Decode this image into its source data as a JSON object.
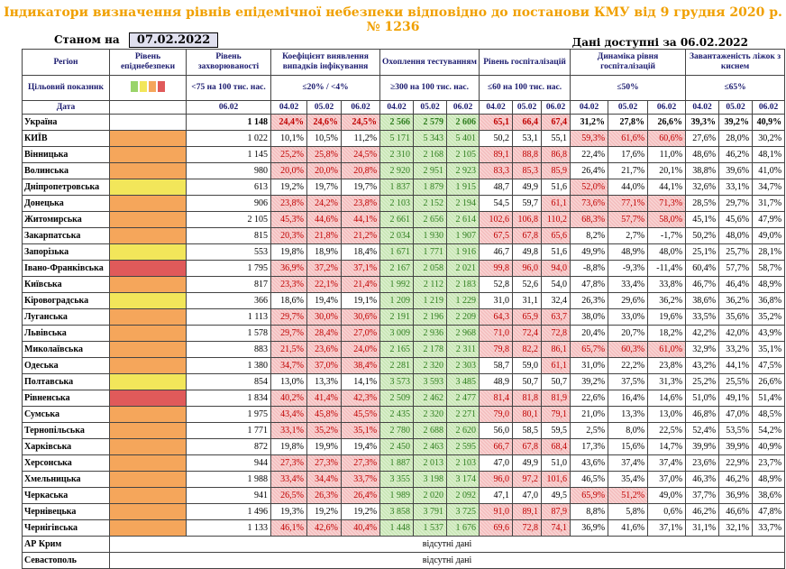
{
  "title": "Індикатори визначення рівнів епідемічної небезпеки відповідно до постанови КМУ від 9 грудня 2020 р. № 1236",
  "as_of_label": "Станом на",
  "as_of_date": "07.02.2022",
  "data_available": "Дані доступні за  06.02.2022",
  "header": {
    "region": "Регіон",
    "target": "Цільовий показник",
    "date": "Дата",
    "level": "Рівень епіднебезпеки",
    "incidence": "Рівень захворюваності",
    "incidence_target": "<75 на 100 тис. нас.",
    "positivity": "Коефіцієнт виявлення випадків інфікування",
    "positivity_target": "≤20% / <4%",
    "testing": "Охоплення тестуванням",
    "testing_target": "≥300 на 100 тис. нас.",
    "hosp": "Рівень госпіталізацій",
    "hosp_target": "≤60 на 100 тис. нас.",
    "hosp_dyn": "Динаміка рівня госпіталізацій",
    "hosp_dyn_target": "≤50%",
    "oxygen": "Завантаженість ліжок з киснем",
    "oxygen_target": "≤65%",
    "d1": "04.02",
    "d2": "05.02",
    "d3": "06.02"
  },
  "legend_colors": [
    "#9ad46a",
    "#f2e65a",
    "#f5a65b",
    "#e05a5a"
  ],
  "level_colors": {
    "orange": "#f5a65b",
    "yellow": "#f2e65a",
    "red": "#e05a5a"
  },
  "absent_text": "відсутні дані",
  "rows": [
    {
      "region": "Україна",
      "level": "",
      "inc": "1 148",
      "pos": [
        "24,4%",
        "24,6%",
        "24,5%"
      ],
      "tst": [
        "2 566",
        "2 579",
        "2 606"
      ],
      "hsp": [
        "65,1",
        "66,4",
        "67,4"
      ],
      "dyn": [
        "31,2%",
        "27,8%",
        "26,6%"
      ],
      "oxy": [
        "39,3%",
        "39,2%",
        "40,9%"
      ],
      "pc": [
        "r",
        "r",
        "r"
      ],
      "tc": [
        "g",
        "g",
        "g"
      ],
      "hc": [
        "r",
        "r",
        "r"
      ],
      "dc": [
        "",
        "",
        ""
      ]
    },
    {
      "region": "КИЇВ",
      "level": "orange",
      "inc": "1 022",
      "pos": [
        "10,1%",
        "10,5%",
        "11,2%"
      ],
      "tst": [
        "5 171",
        "5 343",
        "5 401"
      ],
      "hsp": [
        "50,2",
        "53,1",
        "55,1"
      ],
      "dyn": [
        "59,3%",
        "61,6%",
        "60,6%"
      ],
      "oxy": [
        "27,6%",
        "28,0%",
        "30,2%"
      ],
      "pc": [
        "",
        "",
        ""
      ],
      "tc": [
        "g",
        "g",
        "g"
      ],
      "hc": [
        "",
        "",
        ""
      ],
      "dc": [
        "r",
        "r",
        "r"
      ]
    },
    {
      "region": "Вінницька",
      "level": "orange",
      "inc": "1 145",
      "pos": [
        "25,2%",
        "25,8%",
        "24,5%"
      ],
      "tst": [
        "2 310",
        "2 168",
        "2 105"
      ],
      "hsp": [
        "89,1",
        "88,8",
        "86,8"
      ],
      "dyn": [
        "22,4%",
        "17,6%",
        "11,0%"
      ],
      "oxy": [
        "48,6%",
        "46,2%",
        "48,1%"
      ],
      "pc": [
        "r",
        "r",
        "r"
      ],
      "tc": [
        "g",
        "g",
        "g"
      ],
      "hc": [
        "r",
        "r",
        "r"
      ],
      "dc": [
        "",
        "",
        ""
      ]
    },
    {
      "region": "Волинська",
      "level": "orange",
      "inc": "980",
      "pos": [
        "20,0%",
        "20,0%",
        "20,8%"
      ],
      "tst": [
        "2 920",
        "2 951",
        "2 923"
      ],
      "hsp": [
        "83,3",
        "85,3",
        "85,9"
      ],
      "dyn": [
        "26,4%",
        "21,7%",
        "20,1%"
      ],
      "oxy": [
        "38,8%",
        "39,6%",
        "41,0%"
      ],
      "pc": [
        "r",
        "r",
        "r"
      ],
      "tc": [
        "g",
        "g",
        "g"
      ],
      "hc": [
        "r",
        "r",
        "r"
      ],
      "dc": [
        "",
        "",
        ""
      ]
    },
    {
      "region": "Дніпропетровська",
      "level": "yellow",
      "inc": "613",
      "pos": [
        "19,2%",
        "19,7%",
        "19,7%"
      ],
      "tst": [
        "1 837",
        "1 879",
        "1 915"
      ],
      "hsp": [
        "48,7",
        "49,9",
        "51,6"
      ],
      "dyn": [
        "52,0%",
        "44,0%",
        "44,1%"
      ],
      "oxy": [
        "32,6%",
        "33,1%",
        "34,7%"
      ],
      "pc": [
        "",
        "",
        ""
      ],
      "tc": [
        "g",
        "g",
        "g"
      ],
      "hc": [
        "",
        "",
        ""
      ],
      "dc": [
        "r",
        "",
        ""
      ]
    },
    {
      "region": "Донецька",
      "level": "orange",
      "inc": "906",
      "pos": [
        "23,8%",
        "24,2%",
        "23,8%"
      ],
      "tst": [
        "2 103",
        "2 152",
        "2 194"
      ],
      "hsp": [
        "54,5",
        "59,7",
        "61,1"
      ],
      "dyn": [
        "73,6%",
        "77,1%",
        "71,3%"
      ],
      "oxy": [
        "28,5%",
        "29,7%",
        "31,7%"
      ],
      "pc": [
        "r",
        "r",
        "r"
      ],
      "tc": [
        "g",
        "g",
        "g"
      ],
      "hc": [
        "",
        "",
        "r"
      ],
      "dc": [
        "r",
        "r",
        "r"
      ]
    },
    {
      "region": "Житомирська",
      "level": "orange",
      "inc": "2 105",
      "pos": [
        "45,3%",
        "44,6%",
        "44,1%"
      ],
      "tst": [
        "2 661",
        "2 656",
        "2 614"
      ],
      "hsp": [
        "102,6",
        "106,8",
        "110,2"
      ],
      "dyn": [
        "68,3%",
        "57,7%",
        "58,0%"
      ],
      "oxy": [
        "45,1%",
        "45,6%",
        "47,9%"
      ],
      "pc": [
        "r",
        "r",
        "r"
      ],
      "tc": [
        "g",
        "g",
        "g"
      ],
      "hc": [
        "r",
        "r",
        "r"
      ],
      "dc": [
        "r",
        "r",
        "r"
      ]
    },
    {
      "region": "Закарпатська",
      "level": "orange",
      "inc": "815",
      "pos": [
        "20,3%",
        "21,8%",
        "21,2%"
      ],
      "tst": [
        "2 034",
        "1 930",
        "1 907"
      ],
      "hsp": [
        "67,5",
        "67,8",
        "65,6"
      ],
      "dyn": [
        "8,2%",
        "2,7%",
        "-1,7%"
      ],
      "oxy": [
        "50,2%",
        "48,0%",
        "49,0%"
      ],
      "pc": [
        "r",
        "r",
        "r"
      ],
      "tc": [
        "g",
        "g",
        "g"
      ],
      "hc": [
        "r",
        "r",
        "r"
      ],
      "dc": [
        "",
        "",
        ""
      ]
    },
    {
      "region": "Запорізька",
      "level": "yellow",
      "inc": "553",
      "pos": [
        "19,8%",
        "18,9%",
        "18,4%"
      ],
      "tst": [
        "1 671",
        "1 771",
        "1 916"
      ],
      "hsp": [
        "46,7",
        "49,8",
        "51,6"
      ],
      "dyn": [
        "49,9%",
        "48,9%",
        "48,0%"
      ],
      "oxy": [
        "25,1%",
        "25,7%",
        "28,1%"
      ],
      "pc": [
        "",
        "",
        ""
      ],
      "tc": [
        "g",
        "g",
        "g"
      ],
      "hc": [
        "",
        "",
        ""
      ],
      "dc": [
        "",
        "",
        ""
      ]
    },
    {
      "region": "Івано-Франківська",
      "level": "red",
      "inc": "1 795",
      "pos": [
        "36,9%",
        "37,2%",
        "37,1%"
      ],
      "tst": [
        "2 167",
        "2 058",
        "2 021"
      ],
      "hsp": [
        "99,8",
        "96,0",
        "94,0"
      ],
      "dyn": [
        "-8,8%",
        "-9,3%",
        "-11,4%"
      ],
      "oxy": [
        "60,4%",
        "57,7%",
        "58,7%"
      ],
      "pc": [
        "r",
        "r",
        "r"
      ],
      "tc": [
        "g",
        "g",
        "g"
      ],
      "hc": [
        "r",
        "r",
        "r"
      ],
      "dc": [
        "",
        "",
        ""
      ]
    },
    {
      "region": "Київська",
      "level": "orange",
      "inc": "817",
      "pos": [
        "23,3%",
        "22,1%",
        "21,4%"
      ],
      "tst": [
        "1 992",
        "2 112",
        "2 183"
      ],
      "hsp": [
        "52,8",
        "52,6",
        "54,0"
      ],
      "dyn": [
        "47,8%",
        "33,4%",
        "33,8%"
      ],
      "oxy": [
        "46,7%",
        "46,4%",
        "48,9%"
      ],
      "pc": [
        "r",
        "r",
        "r"
      ],
      "tc": [
        "g",
        "g",
        "g"
      ],
      "hc": [
        "",
        "",
        ""
      ],
      "dc": [
        "",
        "",
        ""
      ]
    },
    {
      "region": "Кіровоградська",
      "level": "yellow",
      "inc": "366",
      "pos": [
        "18,6%",
        "19,4%",
        "19,1%"
      ],
      "tst": [
        "1 209",
        "1 219",
        "1 229"
      ],
      "hsp": [
        "31,0",
        "31,1",
        "32,4"
      ],
      "dyn": [
        "26,3%",
        "29,6%",
        "36,2%"
      ],
      "oxy": [
        "38,6%",
        "36,2%",
        "36,8%"
      ],
      "pc": [
        "",
        "",
        ""
      ],
      "tc": [
        "g",
        "g",
        "g"
      ],
      "hc": [
        "",
        "",
        ""
      ],
      "dc": [
        "",
        "",
        ""
      ]
    },
    {
      "region": "Луганська",
      "level": "orange",
      "inc": "1 113",
      "pos": [
        "29,7%",
        "30,0%",
        "30,6%"
      ],
      "tst": [
        "2 191",
        "2 196",
        "2 209"
      ],
      "hsp": [
        "64,3",
        "65,9",
        "63,7"
      ],
      "dyn": [
        "38,0%",
        "33,0%",
        "19,6%"
      ],
      "oxy": [
        "33,5%",
        "35,6%",
        "35,2%"
      ],
      "pc": [
        "r",
        "r",
        "r"
      ],
      "tc": [
        "g",
        "g",
        "g"
      ],
      "hc": [
        "r",
        "r",
        "r"
      ],
      "dc": [
        "",
        "",
        ""
      ]
    },
    {
      "region": "Львівська",
      "level": "orange",
      "inc": "1 578",
      "pos": [
        "29,7%",
        "28,4%",
        "27,0%"
      ],
      "tst": [
        "3 009",
        "2 936",
        "2 968"
      ],
      "hsp": [
        "71,0",
        "72,4",
        "72,8"
      ],
      "dyn": [
        "20,4%",
        "20,7%",
        "18,2%"
      ],
      "oxy": [
        "42,2%",
        "42,0%",
        "43,9%"
      ],
      "pc": [
        "r",
        "r",
        "r"
      ],
      "tc": [
        "g",
        "g",
        "g"
      ],
      "hc": [
        "r",
        "r",
        "r"
      ],
      "dc": [
        "",
        "",
        ""
      ]
    },
    {
      "region": "Миколаївська",
      "level": "orange",
      "inc": "883",
      "pos": [
        "21,5%",
        "23,6%",
        "24,0%"
      ],
      "tst": [
        "2 165",
        "2 178",
        "2 311"
      ],
      "hsp": [
        "79,8",
        "82,2",
        "86,1"
      ],
      "dyn": [
        "65,7%",
        "60,3%",
        "61,0%"
      ],
      "oxy": [
        "32,9%",
        "33,2%",
        "35,1%"
      ],
      "pc": [
        "r",
        "r",
        "r"
      ],
      "tc": [
        "g",
        "g",
        "g"
      ],
      "hc": [
        "r",
        "r",
        "r"
      ],
      "dc": [
        "r",
        "r",
        "r"
      ]
    },
    {
      "region": "Одеська",
      "level": "orange",
      "inc": "1 380",
      "pos": [
        "34,7%",
        "37,0%",
        "38,4%"
      ],
      "tst": [
        "2 281",
        "2 320",
        "2 303"
      ],
      "hsp": [
        "58,7",
        "59,0",
        "61,1"
      ],
      "dyn": [
        "31,0%",
        "22,2%",
        "23,8%"
      ],
      "oxy": [
        "43,2%",
        "44,1%",
        "47,5%"
      ],
      "pc": [
        "r",
        "r",
        "r"
      ],
      "tc": [
        "g",
        "g",
        "g"
      ],
      "hc": [
        "",
        "",
        "r"
      ],
      "dc": [
        "",
        "",
        ""
      ]
    },
    {
      "region": "Полтавська",
      "level": "yellow",
      "inc": "854",
      "pos": [
        "13,0%",
        "13,3%",
        "14,1%"
      ],
      "tst": [
        "3 573",
        "3 593",
        "3 485"
      ],
      "hsp": [
        "48,9",
        "50,7",
        "50,7"
      ],
      "dyn": [
        "39,2%",
        "37,5%",
        "31,3%"
      ],
      "oxy": [
        "25,2%",
        "25,5%",
        "26,6%"
      ],
      "pc": [
        "",
        "",
        ""
      ],
      "tc": [
        "g",
        "g",
        "g"
      ],
      "hc": [
        "",
        "",
        ""
      ],
      "dc": [
        "",
        "",
        ""
      ]
    },
    {
      "region": "Рівненська",
      "level": "red",
      "inc": "1 834",
      "pos": [
        "40,2%",
        "41,4%",
        "42,3%"
      ],
      "tst": [
        "2 509",
        "2 462",
        "2 477"
      ],
      "hsp": [
        "81,4",
        "81,8",
        "81,9"
      ],
      "dyn": [
        "22,6%",
        "16,4%",
        "14,6%"
      ],
      "oxy": [
        "51,0%",
        "49,1%",
        "51,4%"
      ],
      "pc": [
        "r",
        "r",
        "r"
      ],
      "tc": [
        "g",
        "g",
        "g"
      ],
      "hc": [
        "r",
        "r",
        "r"
      ],
      "dc": [
        "",
        "",
        ""
      ]
    },
    {
      "region": "Сумська",
      "level": "orange",
      "inc": "1 975",
      "pos": [
        "43,4%",
        "45,8%",
        "45,5%"
      ],
      "tst": [
        "2 435",
        "2 320",
        "2 271"
      ],
      "hsp": [
        "79,0",
        "80,1",
        "79,1"
      ],
      "dyn": [
        "21,0%",
        "13,3%",
        "13,0%"
      ],
      "oxy": [
        "46,8%",
        "47,0%",
        "48,5%"
      ],
      "pc": [
        "r",
        "r",
        "r"
      ],
      "tc": [
        "g",
        "g",
        "g"
      ],
      "hc": [
        "r",
        "r",
        "r"
      ],
      "dc": [
        "",
        "",
        ""
      ]
    },
    {
      "region": "Тернопільська",
      "level": "orange",
      "inc": "1 771",
      "pos": [
        "33,1%",
        "35,2%",
        "35,1%"
      ],
      "tst": [
        "2 780",
        "2 688",
        "2 620"
      ],
      "hsp": [
        "56,0",
        "58,5",
        "59,5"
      ],
      "dyn": [
        "2,5%",
        "8,0%",
        "22,5%"
      ],
      "oxy": [
        "52,4%",
        "53,5%",
        "54,2%"
      ],
      "pc": [
        "r",
        "r",
        "r"
      ],
      "tc": [
        "g",
        "g",
        "g"
      ],
      "hc": [
        "",
        "",
        ""
      ],
      "dc": [
        "",
        "",
        ""
      ]
    },
    {
      "region": "Харківська",
      "level": "orange",
      "inc": "872",
      "pos": [
        "19,8%",
        "19,9%",
        "19,4%"
      ],
      "tst": [
        "2 450",
        "2 463",
        "2 595"
      ],
      "hsp": [
        "66,7",
        "67,8",
        "68,4"
      ],
      "dyn": [
        "17,3%",
        "15,6%",
        "14,7%"
      ],
      "oxy": [
        "39,9%",
        "39,9%",
        "40,9%"
      ],
      "pc": [
        "",
        "",
        ""
      ],
      "tc": [
        "g",
        "g",
        "g"
      ],
      "hc": [
        "r",
        "r",
        "r"
      ],
      "dc": [
        "",
        "",
        ""
      ]
    },
    {
      "region": "Херсонська",
      "level": "orange",
      "inc": "944",
      "pos": [
        "27,3%",
        "27,3%",
        "27,3%"
      ],
      "tst": [
        "1 887",
        "2 013",
        "2 103"
      ],
      "hsp": [
        "47,0",
        "49,9",
        "51,0"
      ],
      "dyn": [
        "43,6%",
        "37,4%",
        "37,4%"
      ],
      "oxy": [
        "23,6%",
        "22,9%",
        "23,7%"
      ],
      "pc": [
        "r",
        "r",
        "r"
      ],
      "tc": [
        "g",
        "g",
        "g"
      ],
      "hc": [
        "",
        "",
        ""
      ],
      "dc": [
        "",
        "",
        ""
      ]
    },
    {
      "region": "Хмельницька",
      "level": "orange",
      "inc": "1 988",
      "pos": [
        "33,4%",
        "34,4%",
        "33,7%"
      ],
      "tst": [
        "3 355",
        "3 198",
        "3 174"
      ],
      "hsp": [
        "96,0",
        "97,2",
        "101,6"
      ],
      "dyn": [
        "46,5%",
        "35,4%",
        "37,0%"
      ],
      "oxy": [
        "46,3%",
        "46,2%",
        "48,9%"
      ],
      "pc": [
        "r",
        "r",
        "r"
      ],
      "tc": [
        "g",
        "g",
        "g"
      ],
      "hc": [
        "r",
        "r",
        "r"
      ],
      "dc": [
        "",
        "",
        ""
      ]
    },
    {
      "region": "Черкаська",
      "level": "orange",
      "inc": "941",
      "pos": [
        "26,5%",
        "26,3%",
        "26,4%"
      ],
      "tst": [
        "1 989",
        "2 020",
        "2 092"
      ],
      "hsp": [
        "47,1",
        "47,0",
        "49,5"
      ],
      "dyn": [
        "65,9%",
        "51,2%",
        "49,0%"
      ],
      "oxy": [
        "37,7%",
        "36,9%",
        "38,6%"
      ],
      "pc": [
        "r",
        "r",
        "r"
      ],
      "tc": [
        "g",
        "g",
        "g"
      ],
      "hc": [
        "",
        "",
        ""
      ],
      "dc": [
        "r",
        "r",
        ""
      ]
    },
    {
      "region": "Чернівецька",
      "level": "orange",
      "inc": "1 496",
      "pos": [
        "19,3%",
        "19,2%",
        "19,2%"
      ],
      "tst": [
        "3 858",
        "3 791",
        "3 725"
      ],
      "hsp": [
        "91,0",
        "89,1",
        "87,9"
      ],
      "dyn": [
        "8,8%",
        "5,8%",
        "0,6%"
      ],
      "oxy": [
        "46,2%",
        "46,6%",
        "47,8%"
      ],
      "pc": [
        "",
        "",
        ""
      ],
      "tc": [
        "g",
        "g",
        "g"
      ],
      "hc": [
        "r",
        "r",
        "r"
      ],
      "dc": [
        "",
        "",
        ""
      ]
    },
    {
      "region": "Чернігівська",
      "level": "orange",
      "inc": "1 133",
      "pos": [
        "46,1%",
        "42,6%",
        "40,4%"
      ],
      "tst": [
        "1 448",
        "1 537",
        "1 676"
      ],
      "hsp": [
        "69,6",
        "72,8",
        "74,1"
      ],
      "dyn": [
        "36,9%",
        "41,6%",
        "37,1%"
      ],
      "oxy": [
        "31,1%",
        "32,1%",
        "33,7%"
      ],
      "pc": [
        "r",
        "r",
        "r"
      ],
      "tc": [
        "g",
        "g",
        "g"
      ],
      "hc": [
        "r",
        "r",
        "r"
      ],
      "dc": [
        "",
        "",
        ""
      ]
    }
  ],
  "absent_rows": [
    "АР Крим",
    "Севастополь"
  ]
}
